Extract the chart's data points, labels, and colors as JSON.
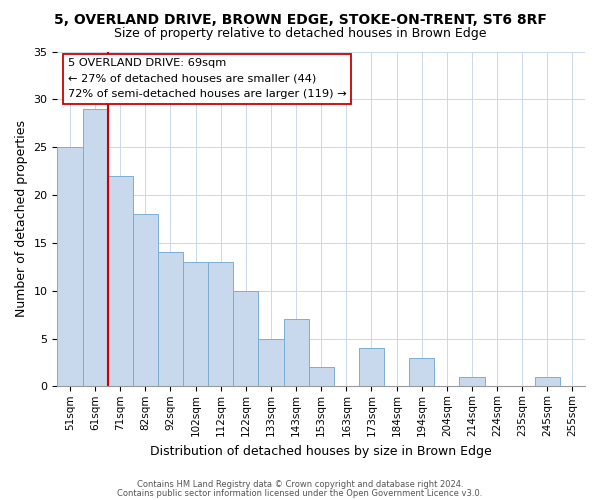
{
  "title": "5, OVERLAND DRIVE, BROWN EDGE, STOKE-ON-TRENT, ST6 8RF",
  "subtitle": "Size of property relative to detached houses in Brown Edge",
  "xlabel": "Distribution of detached houses by size in Brown Edge",
  "ylabel": "Number of detached properties",
  "bar_labels": [
    "51sqm",
    "61sqm",
    "71sqm",
    "82sqm",
    "92sqm",
    "102sqm",
    "112sqm",
    "122sqm",
    "133sqm",
    "143sqm",
    "153sqm",
    "163sqm",
    "173sqm",
    "184sqm",
    "194sqm",
    "204sqm",
    "214sqm",
    "224sqm",
    "235sqm",
    "245sqm",
    "255sqm"
  ],
  "bar_values": [
    25,
    29,
    22,
    18,
    14,
    13,
    13,
    10,
    5,
    7,
    2,
    0,
    4,
    0,
    3,
    0,
    1,
    0,
    0,
    1,
    0
  ],
  "bar_color": "#c9d9ed",
  "bar_edge_color": "#7baed4",
  "vline_color": "#cc0000",
  "vline_pos": 1.5,
  "annotation_title": "5 OVERLAND DRIVE: 69sqm",
  "annotation_line1": "← 27% of detached houses are smaller (44)",
  "annotation_line2": "72% of semi-detached houses are larger (119) →",
  "annotation_box_color": "#ffffff",
  "annotation_box_edge": "#cc0000",
  "ylim": [
    0,
    35
  ],
  "yticks": [
    0,
    5,
    10,
    15,
    20,
    25,
    30,
    35
  ],
  "footer1": "Contains HM Land Registry data © Crown copyright and database right 2024.",
  "footer2": "Contains public sector information licensed under the Open Government Licence v3.0."
}
